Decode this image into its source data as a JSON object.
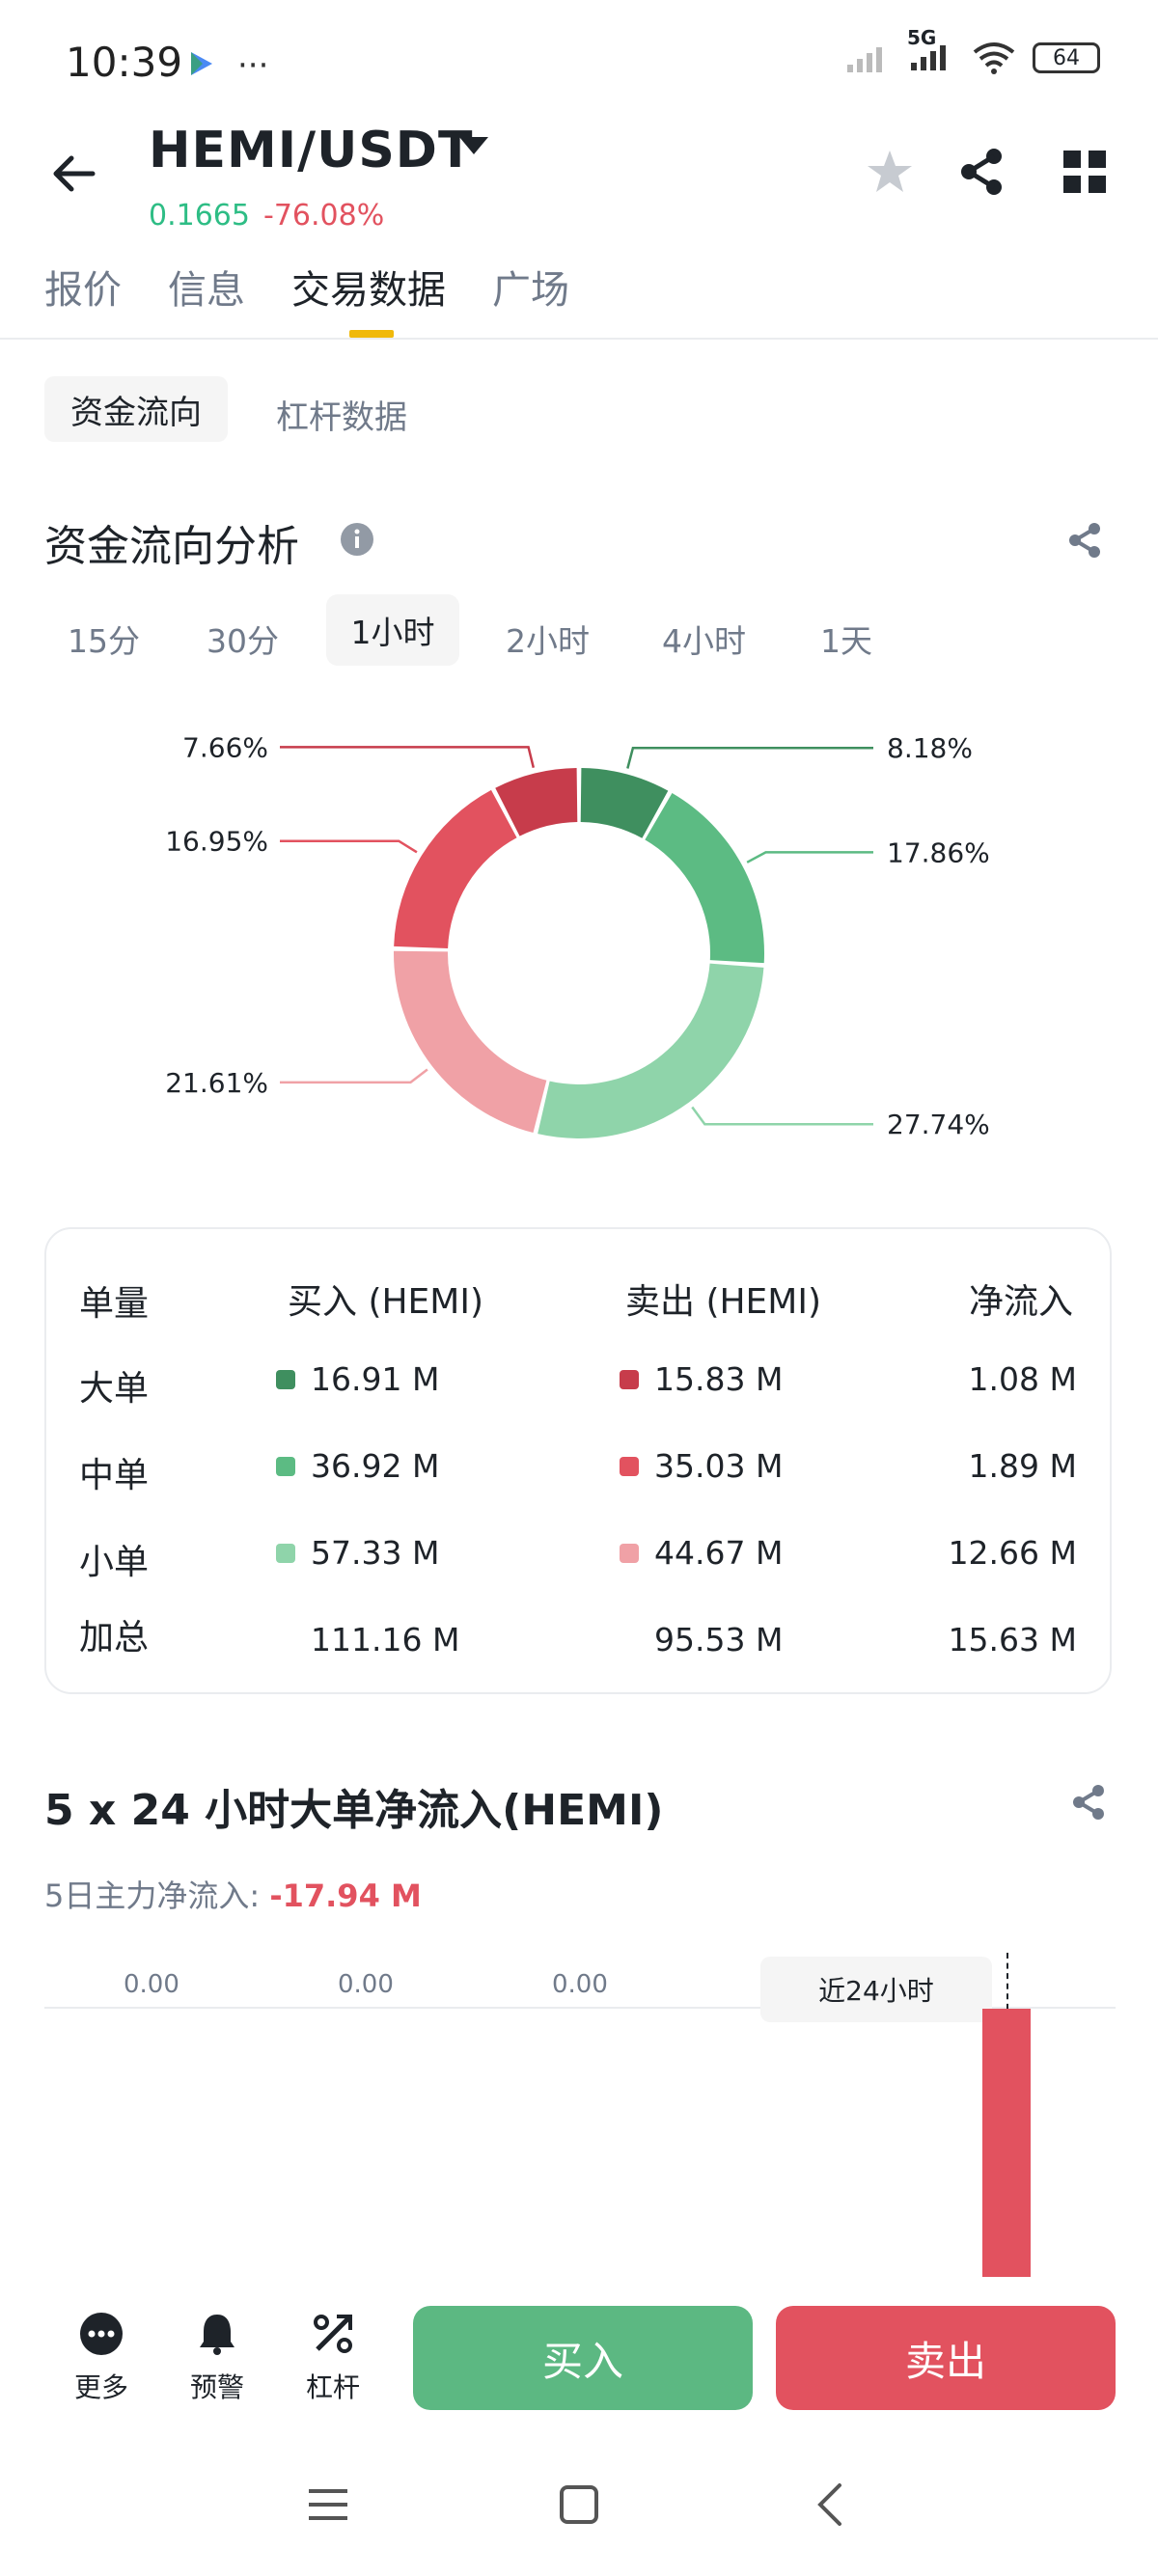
{
  "status_bar": {
    "time": "10:39",
    "network": "5G",
    "battery": "64"
  },
  "header": {
    "pair": "HEMI/USDT",
    "price": "0.1665",
    "change": "-76.08%"
  },
  "tabs": [
    {
      "label": "报价"
    },
    {
      "label": "信息"
    },
    {
      "label": "交易数据"
    },
    {
      "label": "广场"
    }
  ],
  "subtabs": {
    "active": "资金流向",
    "other": "杠杆数据"
  },
  "flow": {
    "title": "资金流向分析",
    "time_filters": [
      "15分",
      "30分",
      "1小时",
      "2小时",
      "4小时",
      "1天"
    ],
    "active_filter": "1小时"
  },
  "chart_data": {
    "type": "pie",
    "slices": [
      {
        "label": "8.18%",
        "value": 8.18,
        "color": "#3f8f5f"
      },
      {
        "label": "17.86%",
        "value": 17.86,
        "color": "#5cbb83"
      },
      {
        "label": "27.74%",
        "value": 27.74,
        "color": "#8fd4aa"
      },
      {
        "label": "21.61%",
        "value": 21.61,
        "color": "#f0a1a6"
      },
      {
        "label": "16.95%",
        "value": 16.95,
        "color": "#e2525f"
      },
      {
        "label": "7.66%",
        "value": 7.66,
        "color": "#c73c4b"
      }
    ]
  },
  "table": {
    "headers": [
      "单量",
      "买入 (HEMI)",
      "卖出 (HEMI)",
      "净流入"
    ],
    "rows": [
      {
        "label": "大单",
        "buy": "16.91 M",
        "sell": "15.83 M",
        "net": "1.08 M",
        "buy_color": "#3f8f5f",
        "sell_color": "#c73c4b"
      },
      {
        "label": "中单",
        "buy": "36.92 M",
        "sell": "35.03 M",
        "net": "1.89 M",
        "buy_color": "#5cbb83",
        "sell_color": "#e2525f"
      },
      {
        "label": "小单",
        "buy": "57.33 M",
        "sell": "44.67 M",
        "net": "12.66 M",
        "buy_color": "#8fd4aa",
        "sell_color": "#f0a1a6"
      },
      {
        "label": "加总",
        "buy": "111.16 M",
        "sell": "95.53 M",
        "net": "15.63 M"
      }
    ]
  },
  "large_order": {
    "title": "5 x 24 小时大单净流入(HEMI)",
    "subtitle_label": "5日主力净流入:",
    "subtitle_value": "-17.94 M",
    "axis_labels": [
      "0.00",
      "0.00",
      "0.00"
    ],
    "tooltip": "近24小时"
  },
  "bottom_bar": {
    "more": "更多",
    "alert": "预警",
    "leverage": "杠杆",
    "buy": "买入",
    "sell": "卖出"
  },
  "colors": {
    "up": "#2ebd85",
    "down": "#e2525f",
    "accent": "#f0b90b"
  }
}
